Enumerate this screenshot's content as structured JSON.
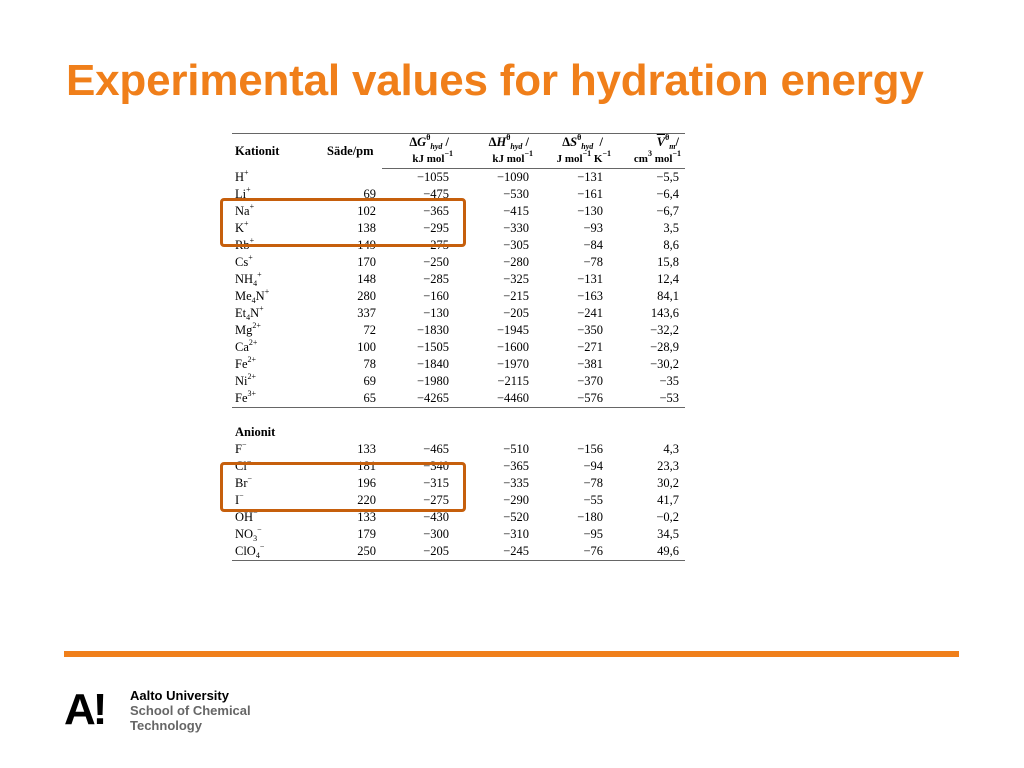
{
  "slide": {
    "title": "Experimental values for hydration energy"
  },
  "table": {
    "header": {
      "col0": "Kationit",
      "col1": "Säde/pm",
      "g_sym": "G",
      "g_sub": "hyd",
      "g_unit": "kJ mol",
      "g_exp": "−1",
      "h_sym": "H",
      "h_sub": "hyd",
      "h_unit": "kJ mol",
      "h_exp": "−1",
      "s_sym": "S",
      "s_sub": "hyd",
      "s_unit1": "J mol",
      "s_exp1": "−1",
      "s_unit2": " K",
      "s_exp2": "−1",
      "v_sym": "V",
      "v_sub": "m",
      "v_unit1": "cm",
      "v_exp1": "3",
      "v_unit2": " mol",
      "v_exp2": "−1",
      "delta": "Δ",
      "theta": "θ",
      "slash": "/"
    },
    "cations": [
      {
        "base": "H",
        "sub": "",
        "tail": "",
        "charge": "+",
        "radius": "",
        "g": "−1055",
        "h": "−1090",
        "s": "−131",
        "v": "−5,5"
      },
      {
        "base": "Li",
        "sub": "",
        "tail": "",
        "charge": "+",
        "radius": "69",
        "g": "−475",
        "h": "−530",
        "s": "−161",
        "v": "−6,4"
      },
      {
        "base": "Na",
        "sub": "",
        "tail": "",
        "charge": "+",
        "radius": "102",
        "g": "−365",
        "h": "−415",
        "s": "−130",
        "v": "−6,7"
      },
      {
        "base": "K",
        "sub": "",
        "tail": "",
        "charge": "+",
        "radius": "138",
        "g": "−295",
        "h": "−330",
        "s": "−93",
        "v": "3,5"
      },
      {
        "base": "Rb",
        "sub": "",
        "tail": "",
        "charge": "+",
        "radius": "149",
        "g": "−275",
        "h": "−305",
        "s": "−84",
        "v": "8,6"
      },
      {
        "base": "Cs",
        "sub": "",
        "tail": "",
        "charge": "+",
        "radius": "170",
        "g": "−250",
        "h": "−280",
        "s": "−78",
        "v": "15,8"
      },
      {
        "base": "NH",
        "sub": "4",
        "tail": "",
        "charge": "+",
        "radius": "148",
        "g": "−285",
        "h": "−325",
        "s": "−131",
        "v": "12,4"
      },
      {
        "base": "Me",
        "sub": "4",
        "tail": "N",
        "charge": "+",
        "radius": "280",
        "g": "−160",
        "h": "−215",
        "s": "−163",
        "v": "84,1"
      },
      {
        "base": "Et",
        "sub": "4",
        "tail": "N",
        "charge": "+",
        "radius": "337",
        "g": "−130",
        "h": "−205",
        "s": "−241",
        "v": "143,6"
      },
      {
        "base": "Mg",
        "sub": "",
        "tail": "",
        "charge": "2+",
        "radius": "72",
        "g": "−1830",
        "h": "−1945",
        "s": "−350",
        "v": "−32,2"
      },
      {
        "base": "Ca",
        "sub": "",
        "tail": "",
        "charge": "2+",
        "radius": "100",
        "g": "−1505",
        "h": "−1600",
        "s": "−271",
        "v": "−28,9"
      },
      {
        "base": "Fe",
        "sub": "",
        "tail": "",
        "charge": "2+",
        "radius": "78",
        "g": "−1840",
        "h": "−1970",
        "s": "−381",
        "v": "−30,2"
      },
      {
        "base": "Ni",
        "sub": "",
        "tail": "",
        "charge": "2+",
        "radius": "69",
        "g": "−1980",
        "h": "−2115",
        "s": "−370",
        "v": "−35"
      },
      {
        "base": "Fe",
        "sub": "",
        "tail": "",
        "charge": "3+",
        "radius": "65",
        "g": "−4265",
        "h": "−4460",
        "s": "−576",
        "v": "−53"
      }
    ],
    "anion_heading": "Anionit",
    "anions": [
      {
        "base": "F",
        "sub": "",
        "tail": "",
        "charge": "−",
        "radius": "133",
        "g": "−465",
        "h": "−510",
        "s": "−156",
        "v": "4,3"
      },
      {
        "base": "Cl",
        "sub": "",
        "tail": "",
        "charge": "−",
        "radius": "181",
        "g": "−340",
        "h": "−365",
        "s": "−94",
        "v": "23,3"
      },
      {
        "base": "Br",
        "sub": "",
        "tail": "",
        "charge": "−",
        "radius": "196",
        "g": "−315",
        "h": "−335",
        "s": "−78",
        "v": "30,2"
      },
      {
        "base": "I",
        "sub": "",
        "tail": "",
        "charge": "−",
        "radius": "220",
        "g": "−275",
        "h": "−290",
        "s": "−55",
        "v": "41,7"
      },
      {
        "base": "OH",
        "sub": "",
        "tail": "",
        "charge": "−",
        "radius": "133",
        "g": "−430",
        "h": "−520",
        "s": "−180",
        "v": "−0,2"
      },
      {
        "base": "NO",
        "sub": "3",
        "tail": "",
        "charge": "−",
        "radius": "179",
        "g": "−300",
        "h": "−310",
        "s": "−95",
        "v": "34,5"
      },
      {
        "base": "ClO",
        "sub": "4",
        "tail": "",
        "charge": "−",
        "radius": "250",
        "g": "−205",
        "h": "−245",
        "s": "−76",
        "v": "49,6"
      }
    ]
  },
  "highlight_color": "#c65f0c",
  "accent_color": "#f07f1a",
  "footer": {
    "logo_mark": "A!",
    "university": "Aalto University",
    "school_line1": "School of Chemical",
    "school_line2": "Technology"
  }
}
